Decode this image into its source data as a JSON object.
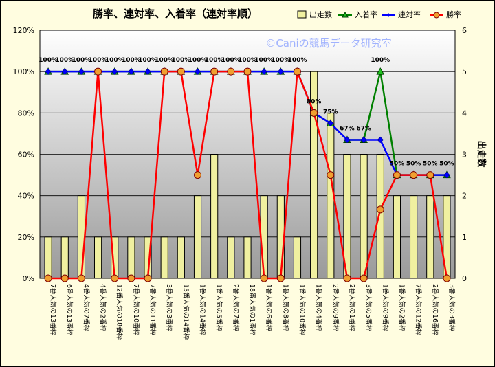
{
  "chart_data": {
    "type": "bar",
    "title": "勝率、連対率、入着率（連対率順）",
    "watermark": "©Caniの競馬データ研究室",
    "ylabel_right": "出走数",
    "y_left_ticks": [
      "0%",
      "20%",
      "40%",
      "60%",
      "80%",
      "100%",
      "120%"
    ],
    "y_right_ticks": [
      "0",
      "1",
      "2",
      "3",
      "4",
      "5",
      "6"
    ],
    "ylim_left": [
      0,
      120
    ],
    "ylim_right": [
      0,
      6
    ],
    "grid": true,
    "legend_position": "top-right",
    "legend": [
      "出走数",
      "入着率",
      "連対率",
      "勝率"
    ],
    "colors": {
      "bar": "#f0f0a0",
      "bar_stroke": "#000000",
      "nyuchaku": "#008000",
      "rentai": "#0000ff",
      "shouritsu": "#ff0000",
      "win_marker": "#f0a030",
      "plot_top": "#ffffff",
      "plot_bottom": "#9a9a9a"
    },
    "categories": [
      "7番人気の13番枠",
      "6番人気の13番枠",
      "4番人気の7番枠",
      "4番人気の2番枠",
      "12番人気の18番枠",
      "7番人気の10番枠",
      "7番人気の11番枠",
      "3番人気の3番枠",
      "15番人気の14番枠",
      "1番人気の14番枠",
      "1番人気の5番枠",
      "2番人気の7番枠",
      "18番人気の1番枠",
      "1番人気の6番枠",
      "1番人気の8番枠",
      "1番人気の10番枠",
      "1番人気の4番枠",
      "2番人気の9番枠",
      "2番人気の1番枠",
      "3番人気の5番枠",
      "1番人気の9番枠",
      "1番人気の2番枠",
      "7番人気の12番枠",
      "2番人気の16番枠",
      "3番人気の3番枠"
    ],
    "series": [
      {
        "name": "出走数",
        "axis": "right",
        "values": [
          1,
          1,
          2,
          1,
          1,
          1,
          1,
          1,
          1,
          2,
          3,
          1,
          1,
          2,
          2,
          1,
          5,
          4,
          3,
          3,
          3,
          2,
          2,
          2,
          2
        ]
      },
      {
        "name": "入着率",
        "axis": "left",
        "values": [
          100,
          100,
          100,
          100,
          100,
          100,
          100,
          100,
          100,
          100,
          100,
          100,
          100,
          100,
          100,
          100,
          80,
          75,
          67,
          67,
          100,
          50,
          50,
          50,
          50
        ]
      },
      {
        "name": "連対率",
        "axis": "left",
        "values": [
          100,
          100,
          100,
          100,
          100,
          100,
          100,
          100,
          100,
          100,
          100,
          100,
          100,
          100,
          100,
          100,
          80,
          75,
          67,
          67,
          67,
          50,
          50,
          50,
          50
        ]
      },
      {
        "name": "勝率",
        "axis": "left",
        "values": [
          0,
          0,
          0,
          100,
          0,
          0,
          0,
          100,
          100,
          50,
          100,
          100,
          100,
          0,
          0,
          100,
          80,
          50,
          0,
          0,
          33.3,
          50,
          50,
          50,
          0
        ]
      }
    ],
    "data_labels": [
      "100%",
      "100%",
      "100%",
      "100%",
      "100%",
      "100%",
      "100%",
      "100%",
      "100%",
      "100%",
      "100%",
      "100%",
      "100%",
      "100%",
      "100%",
      "100%",
      "80%",
      "75%",
      "67%",
      "67%",
      "100%",
      "50%",
      "50%",
      "50%",
      "50%"
    ]
  }
}
